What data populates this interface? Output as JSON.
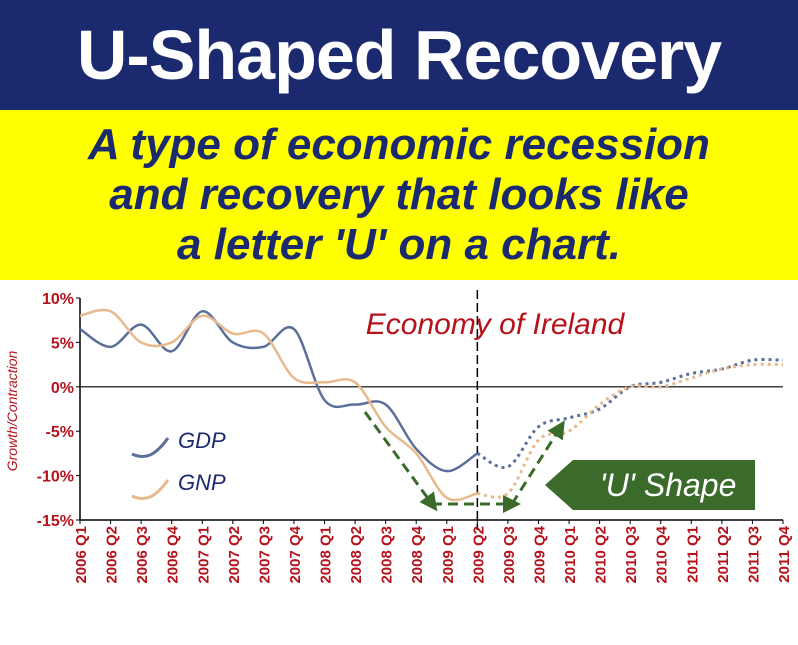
{
  "header": {
    "title": "U-Shaped Recovery",
    "subtitle_lines": [
      "A type of economic recession",
      "and recovery that looks like",
      "a letter 'U' on a chart."
    ]
  },
  "chart_data": {
    "type": "line",
    "title": "Economy of Ireland",
    "xlabel": "",
    "ylabel": "Growth/Contraction",
    "ylim": [
      -15,
      10
    ],
    "y_ticks": [
      "10%",
      "5%",
      "0%",
      "-5%",
      "-10%",
      "-15%"
    ],
    "y_tick_values": [
      10,
      5,
      0,
      -5,
      -10,
      -15
    ],
    "categories": [
      "2006 Q1",
      "2006 Q2",
      "2006 Q3",
      "2006 Q4",
      "2007 Q1",
      "2007 Q2",
      "2007 Q3",
      "2007 Q4",
      "2008 Q1",
      "2008 Q2",
      "2008 Q3",
      "2008 Q4",
      "2009 Q1",
      "2009 Q2",
      "2009 Q3",
      "2009 Q4",
      "2010 Q1",
      "2010 Q2",
      "2010 Q3",
      "2010 Q4",
      "2011 Q1",
      "2011 Q2",
      "2011 Q3",
      "2011 Q4"
    ],
    "actual_through": "2009 Q2",
    "forecast_from": "2009 Q2",
    "series": [
      {
        "name": "GDP",
        "color": "#5a6f99",
        "values": [
          6.5,
          4.5,
          7,
          4,
          8.5,
          5,
          4.5,
          6.5,
          -1.5,
          -2,
          -2,
          -7,
          -9.5,
          -7.5,
          -9,
          -4.5,
          -3.5,
          -2.5,
          0,
          0.5,
          1.5,
          2,
          3,
          3
        ]
      },
      {
        "name": "GNP",
        "color": "#e8b98c",
        "values": [
          8,
          8.5,
          5,
          5,
          8,
          6,
          6,
          1,
          0.5,
          0.5,
          -4.5,
          -7.5,
          -12.5,
          -12,
          -12,
          -6,
          -5,
          -2,
          0,
          0,
          1,
          2,
          2.5,
          2.5
        ]
      }
    ],
    "annotation": {
      "label": "'U' Shape",
      "color": "#3a6b2a"
    },
    "grid": false,
    "legend_position": "left"
  }
}
